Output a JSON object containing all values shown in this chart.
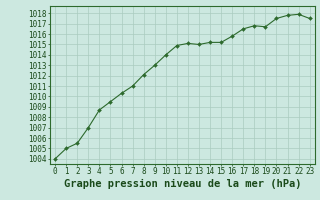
{
  "x": [
    0,
    1,
    2,
    3,
    4,
    5,
    6,
    7,
    8,
    9,
    10,
    11,
    12,
    13,
    14,
    15,
    16,
    17,
    18,
    19,
    20,
    21,
    22,
    23
  ],
  "y": [
    1004.0,
    1005.0,
    1005.5,
    1007.0,
    1008.7,
    1009.5,
    1010.3,
    1011.0,
    1012.1,
    1013.0,
    1014.0,
    1014.9,
    1015.1,
    1015.0,
    1015.2,
    1015.2,
    1015.8,
    1016.5,
    1016.8,
    1016.7,
    1017.5,
    1017.8,
    1017.9,
    1017.5
  ],
  "line_color": "#2d6a2d",
  "marker": "D",
  "marker_size": 2.0,
  "bg_color": "#cce8e0",
  "grid_color": "#aaccbf",
  "ylabel_values": [
    1004,
    1005,
    1006,
    1007,
    1008,
    1009,
    1010,
    1011,
    1012,
    1013,
    1014,
    1015,
    1016,
    1017,
    1018
  ],
  "ylim": [
    1003.5,
    1018.7
  ],
  "xlim": [
    -0.5,
    23.5
  ],
  "xlabel": "Graphe pression niveau de la mer (hPa)",
  "xlabel_color": "#1a4a1a",
  "tick_label_color": "#1a4a1a",
  "tick_fontsize": 5.5,
  "label_fontsize": 7.5
}
